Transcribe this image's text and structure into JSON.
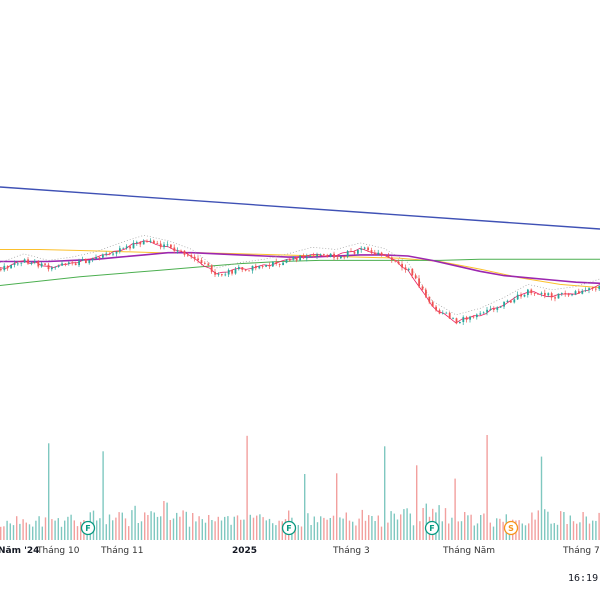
{
  "timeline": {
    "labels": [
      "Năm '24",
      "Tháng 10",
      "Tháng 11",
      "2025",
      "Tháng 3",
      "Tháng Năm",
      "Tháng 7"
    ],
    "bold": [
      true,
      false,
      false,
      true,
      false,
      false,
      false
    ]
  },
  "event_markers": [
    {
      "symbol": "F",
      "kind": "financial",
      "color": "#089981"
    },
    {
      "symbol": "F",
      "kind": "financial",
      "color": "#089981"
    },
    {
      "symbol": "F",
      "kind": "financial",
      "color": "#089981"
    },
    {
      "symbol": "S",
      "kind": "split",
      "color": "#f7931a"
    }
  ],
  "clock": {
    "time": "16:19:"
  },
  "colors": {
    "up": "#26a69a",
    "down": "#ef5350",
    "trendline": "#3f51b5",
    "ma_short": "#e91e63",
    "ma_mid": "#9c27b0",
    "ma_long": "#4caf50",
    "ma_yellow": "#fbc02d",
    "axis_bg": "#f8f9fd"
  },
  "icons": [
    "financial-event-icon",
    "split-event-icon"
  ],
  "chart_data": {
    "type": "candlestick",
    "title": "",
    "xlabel": "",
    "ylabel": "",
    "x_tick_labels": [
      "Năm '24",
      "Tháng 10",
      "Tháng 11",
      "2025",
      "Tháng 3",
      "Tháng Năm",
      "Tháng 7"
    ],
    "grid": false,
    "legend": "none",
    "y_axis_visible": false,
    "price_levels": [
      1.2,
      1.28,
      1.22,
      1.25,
      1.3,
      1.38,
      1.45,
      1.4,
      1.32,
      1.15,
      1.2,
      1.23,
      1.28,
      1.34,
      1.32,
      1.38,
      1.33,
      1.2,
      0.85,
      0.72,
      0.78,
      0.88,
      1.0,
      0.95,
      0.98,
      1.05
    ],
    "ma_series": [
      {
        "color": "#9c27b0",
        "values": [
          1.27,
          1.27,
          1.27,
          1.28,
          1.29,
          1.31,
          1.33,
          1.35,
          1.35,
          1.34,
          1.33,
          1.32,
          1.31,
          1.31,
          1.32,
          1.33,
          1.33,
          1.32,
          1.28,
          1.23,
          1.18,
          1.14,
          1.12,
          1.1,
          1.08,
          1.07
        ]
      },
      {
        "color": "#4caf50",
        "values": [
          1.05,
          1.09,
          1.13,
          1.16,
          1.19,
          1.22,
          1.25,
          1.27,
          1.28,
          1.28,
          1.28,
          1.28,
          1.29,
          1.29,
          1.29,
          1.29
        ]
      },
      {
        "color": "#fbc02d",
        "values": [
          1.38,
          1.38,
          1.37,
          1.36,
          1.35,
          1.35,
          1.34,
          1.33,
          1.32,
          1.31,
          1.3,
          1.27,
          1.2,
          1.12,
          1.06,
          1.03
        ]
      }
    ],
    "volume_relative": [
      0.35,
      0.45,
      0.3,
      0.4,
      0.55,
      0.6,
      0.75,
      0.95,
      0.5,
      0.35,
      0.45,
      0.4,
      0.55,
      0.5,
      0.65,
      0.6,
      0.45,
      0.7,
      0.8,
      0.55,
      0.5,
      0.45,
      0.6,
      0.7,
      0.5,
      0.55
    ]
  }
}
